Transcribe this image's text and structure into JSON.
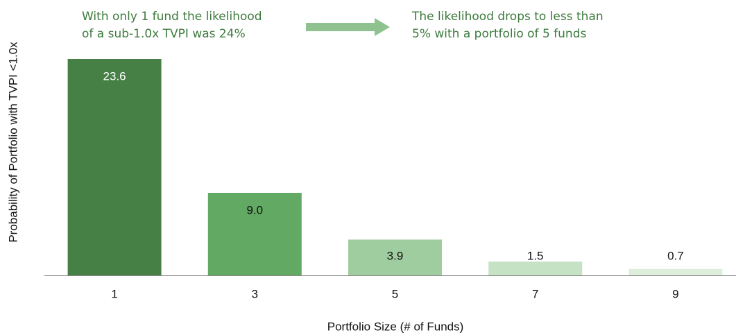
{
  "chart_data": {
    "type": "bar",
    "x_label": "Portfolio Size (# of Funds)",
    "y_label": "Probability of Portfolio with TVPI <1.0x",
    "categories": [
      "1",
      "3",
      "5",
      "7",
      "9"
    ],
    "values": [
      23.6,
      9.0,
      3.9,
      1.5,
      0.7
    ],
    "value_labels": [
      "23.6",
      "9.0",
      "3.9",
      "1.5",
      "0.7"
    ],
    "colors": [
      "#468045",
      "#62a963",
      "#9fcd9f",
      "#c5e2c5",
      "#ddeedd"
    ],
    "label_colors": [
      "#ffffff",
      "#111111",
      "#111111",
      "#111111",
      "#111111"
    ],
    "ylim": [
      0,
      25
    ],
    "annotations": [
      {
        "lines": [
          "With only 1 fund the likelihood",
          "of a sub-1.0x TVPI was 24%"
        ]
      },
      {
        "lines": [
          "The likelihood drops to less than",
          "5% with a portfolio of 5 funds"
        ]
      }
    ]
  }
}
